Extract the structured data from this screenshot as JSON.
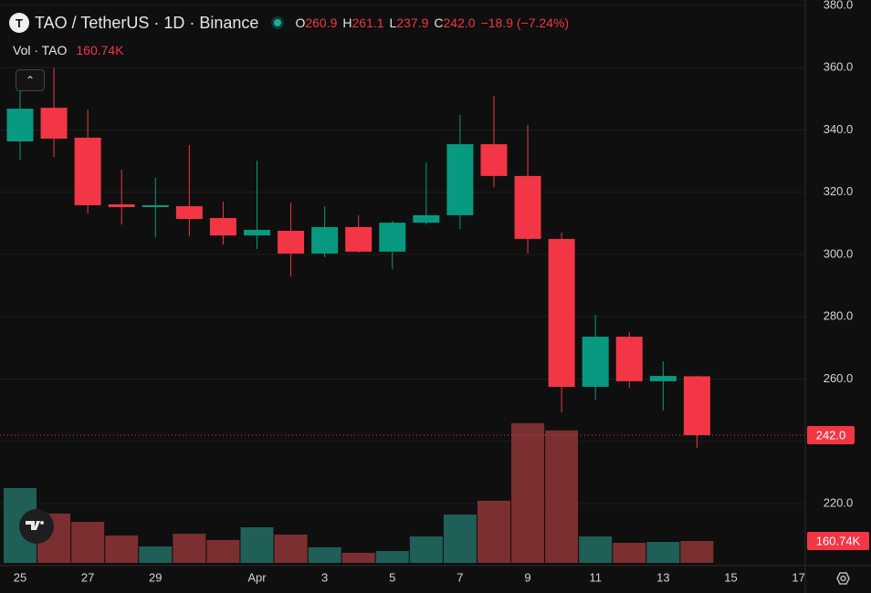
{
  "chart_data": {
    "type": "candlestick",
    "title": "TAO / TetherUS · 1D · Binance",
    "symbol_icon": "T",
    "ohlc_header": [
      {
        "key": "O",
        "value": "260.9"
      },
      {
        "key": "H",
        "value": "261.1"
      },
      {
        "key": "L",
        "value": "237.9"
      },
      {
        "key": "C",
        "value": "242.0"
      }
    ],
    "change": "−18.9 (−7.24%)",
    "volume_title": "Vol · TAO",
    "volume_header": "160.74K",
    "categories": [
      "25",
      null,
      "27",
      null,
      "29",
      null,
      null,
      "Apr",
      null,
      "3",
      null,
      "5",
      null,
      "7",
      null,
      "9",
      null,
      "11",
      null,
      "13",
      null,
      "15",
      null,
      "17"
    ],
    "open": [
      336.3,
      347.1,
      337.5,
      316.1,
      315.2,
      315.5,
      311.7,
      306.1,
      307.6,
      300.3,
      308.8,
      300.9,
      310.2,
      312.6,
      335.4,
      325.2,
      305.0,
      257.5,
      273.6,
      259.3,
      260.9,
      null,
      null,
      null
    ],
    "high": [
      353.0,
      360.0,
      346.5,
      327.2,
      324.6,
      335.1,
      317.0,
      330.1,
      316.7,
      315.5,
      312.6,
      310.8,
      329.5,
      344.8,
      350.9,
      341.6,
      307.0,
      280.6,
      275.1,
      265.7,
      261.1,
      null,
      null,
      null
    ],
    "low": [
      330.4,
      331.3,
      313.1,
      309.6,
      305.5,
      305.8,
      303.2,
      301.7,
      292.9,
      299.1,
      300.6,
      295.3,
      309.6,
      308.2,
      321.6,
      300.3,
      249.3,
      253.4,
      257.2,
      249.9,
      237.9,
      null,
      null,
      null
    ],
    "close": [
      346.8,
      337.2,
      315.8,
      315.2,
      315.8,
      311.4,
      306.1,
      307.9,
      300.3,
      308.8,
      300.9,
      310.2,
      312.6,
      335.4,
      325.2,
      305.0,
      257.5,
      273.6,
      259.3,
      261.0,
      242.0,
      null,
      null,
      null
    ],
    "volume": [
      549,
      362,
      301,
      201,
      121,
      214,
      168,
      261,
      208,
      114,
      74,
      87,
      194,
      355,
      456,
      1025,
      972,
      194,
      147,
      154,
      160.74,
      null,
      null,
      null
    ],
    "up_color": "#089981",
    "down_color": "#f23645",
    "volume_up_color": "#1f5f58",
    "volume_down_color": "#7c2f30",
    "ylim": [
      200.1,
      381.7
    ],
    "yticks": [
      {
        "value": 220,
        "label": "220.0"
      },
      {
        "value": 240,
        "label": "240.0"
      },
      {
        "value": 260,
        "label": "260.0"
      },
      {
        "value": 280,
        "label": "280.0"
      },
      {
        "value": 300,
        "label": "300.0"
      },
      {
        "value": 320,
        "label": "320.0"
      },
      {
        "value": 340,
        "label": "340.0"
      },
      {
        "value": 360,
        "label": "360.0"
      },
      {
        "value": 380,
        "label": "380.0"
      }
    ],
    "volume_ylim": [
      0,
      4130
    ],
    "last_price": {
      "value": 242,
      "label": "242.0"
    },
    "last_volume": {
      "value": 160.74,
      "label": "160.74K"
    },
    "grid": true
  }
}
